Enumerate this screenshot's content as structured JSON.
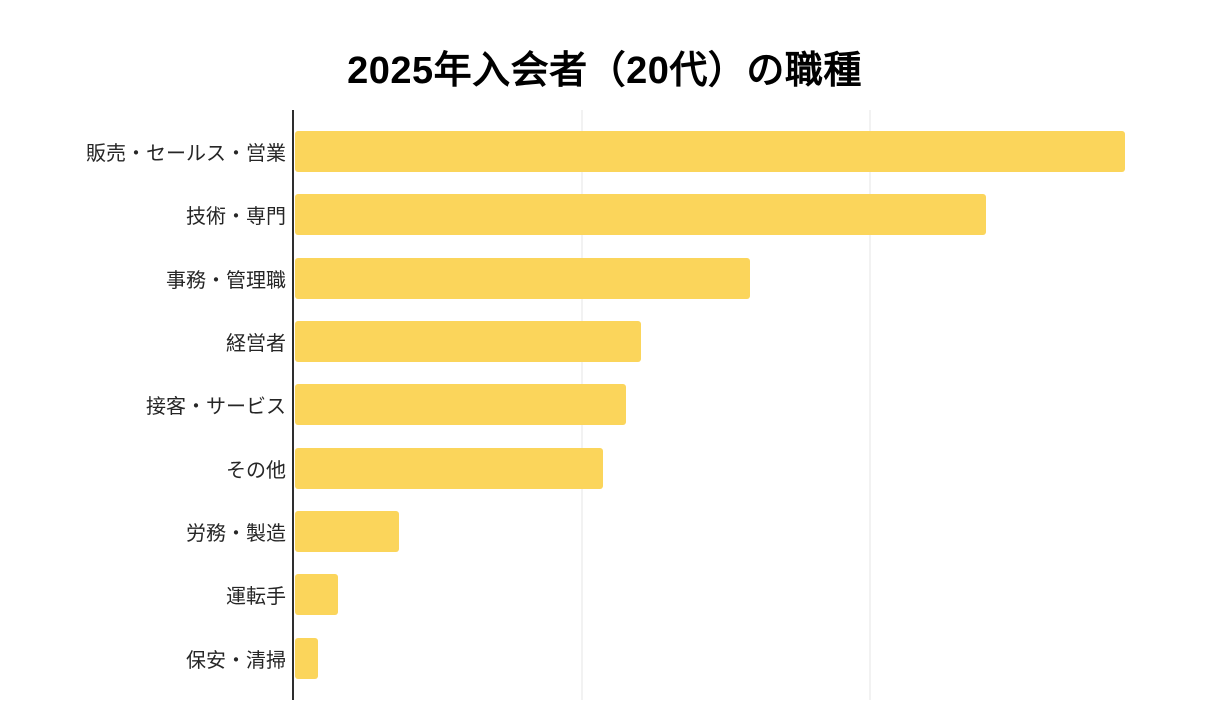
{
  "page": {
    "background": "#ffffff"
  },
  "chart_data": {
    "type": "bar",
    "orientation": "horizontal",
    "title": "2025年入会者（20代）の職種",
    "categories": [
      "販売・セールス・営業",
      "技術・専門",
      "事務・管理職",
      "経営者",
      "接客・サービス",
      "その他",
      "労務・製造",
      "運転手",
      "保安・清掃"
    ],
    "values": [
      288,
      240,
      158,
      120,
      115,
      107,
      36,
      15,
      8
    ],
    "values_note": "axis has no visible tick labels; values estimated from bar lengths with one gridline interval = 100",
    "xlim": [
      0,
      318
    ],
    "gridlines_x": [
      100,
      200
    ],
    "x_tick_labels": [],
    "legend": "none",
    "grid": "faint vertical gridlines only",
    "colors": {
      "bar": "#FBD55B",
      "axis": "#2e2e2e",
      "gridline": "#f2f2f2",
      "label": "#262626",
      "title": "#000000"
    }
  }
}
